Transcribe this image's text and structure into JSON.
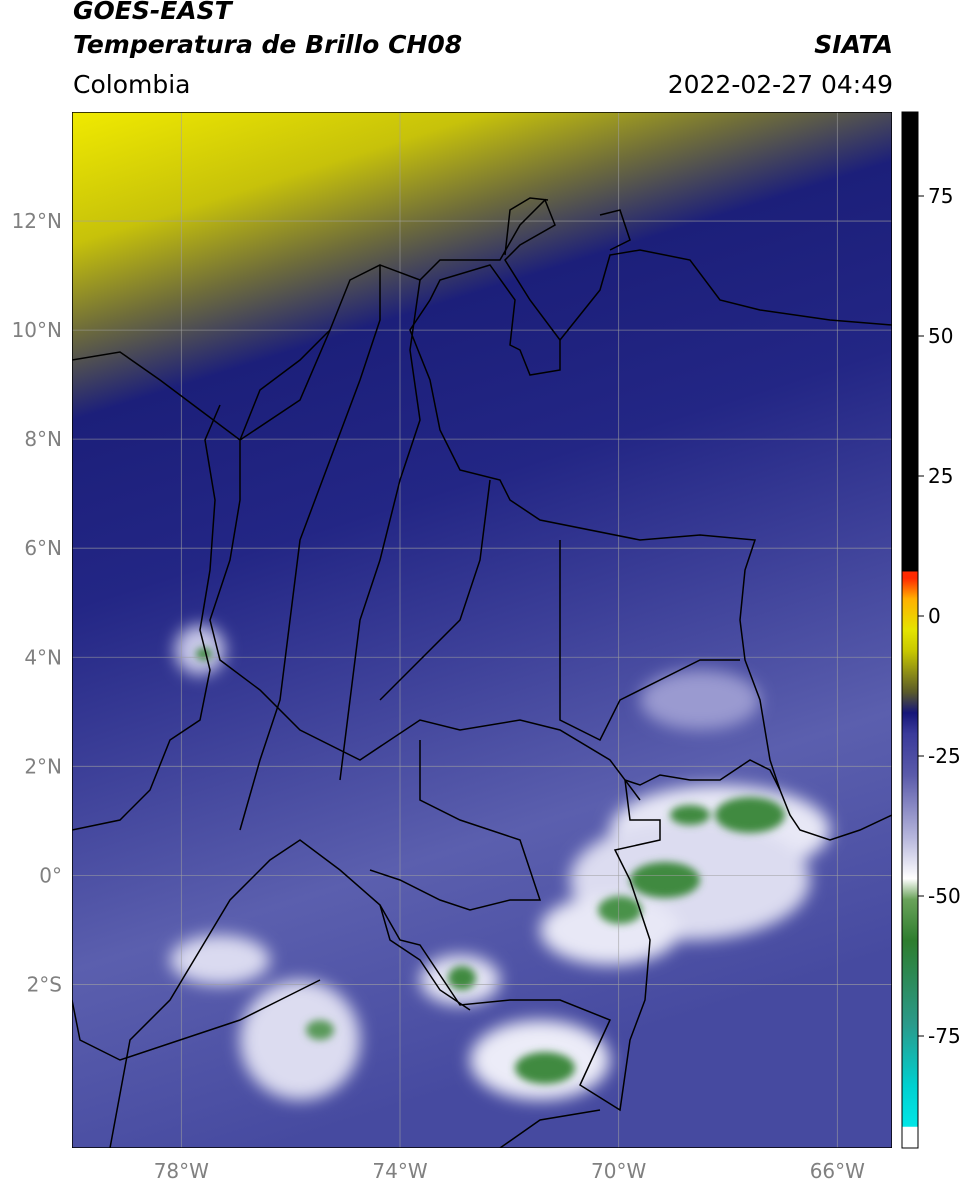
{
  "header": {
    "satellite": "GOES-EAST",
    "product": "Temperatura de Brillo CH08",
    "agency": "SIATA",
    "region": "Colombia",
    "datetime": "2022-02-27 04:49"
  },
  "map": {
    "lon_ticks": [
      "78°W",
      "74°W",
      "70°W",
      "66°W"
    ],
    "lat_ticks": [
      "12°N",
      "10°N",
      "8°N",
      "6°N",
      "4°N",
      "2°N",
      "0°",
      "2°S"
    ],
    "lon_range": [
      -80,
      -65
    ],
    "lat_range": [
      -5,
      14
    ]
  },
  "colorbar": {
    "ticks": [
      "75",
      "50",
      "25",
      "0",
      "-25",
      "-50",
      "-75"
    ],
    "range": [
      -95,
      90
    ],
    "colors": {
      "warm_black": "#000000",
      "red": "#ff2a00",
      "orange": "#ff8c00",
      "yellow": "#e4e400",
      "olive": "#5a5a2a",
      "dark_blue": "#161679",
      "mid_blue": "#3a3a9a",
      "lavender": "#b6b6dc",
      "white": "#ffffff",
      "green": "#2e7d2e",
      "teal": "#2a9a8a",
      "cyan": "#00e6e6"
    }
  }
}
